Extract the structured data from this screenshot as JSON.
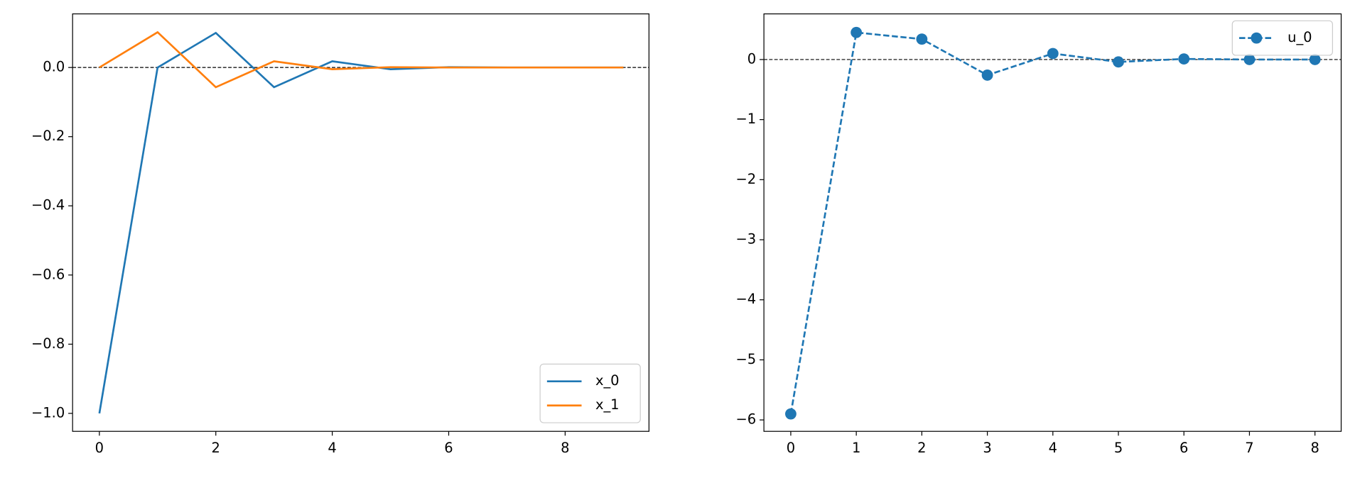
{
  "chart_data": [
    {
      "type": "line",
      "x": [
        0,
        1,
        2,
        3,
        4,
        5,
        6,
        7,
        8,
        9
      ],
      "series": [
        {
          "name": "x_0",
          "color": "#1f77b4",
          "values": [
            -1.0,
            0.0,
            0.1,
            -0.057,
            0.018,
            -0.005,
            0.001,
            0.0,
            0.0,
            0.0
          ]
        },
        {
          "name": "x_1",
          "color": "#ff7f0e",
          "values": [
            0.0,
            0.102,
            -0.057,
            0.018,
            -0.005,
            0.001,
            0.0,
            0.0,
            0.0,
            0.0
          ]
        }
      ],
      "xlim": [
        -0.46,
        9.44
      ],
      "ylim": [
        -1.052,
        0.155
      ],
      "xticks": [
        0,
        2,
        4,
        6,
        8
      ],
      "yticks": [
        {
          "value": 0,
          "label": "0.0"
        },
        {
          "value": -0.2,
          "label": "−0.2"
        },
        {
          "value": -0.4,
          "label": "−0.4"
        },
        {
          "value": -0.6,
          "label": "−0.6"
        },
        {
          "value": -0.8,
          "label": "−0.8"
        },
        {
          "value": -1.0,
          "label": "−1.0"
        }
      ],
      "hline": 0,
      "legend": "lower right"
    },
    {
      "type": "line",
      "x": [
        0,
        1,
        2,
        3,
        4,
        5,
        6,
        7,
        8
      ],
      "series": [
        {
          "name": "u_0",
          "color": "#1f77b4",
          "linestyle": "dashed",
          "marker": "o",
          "values": [
            -5.9,
            0.45,
            0.34,
            -0.26,
            0.1,
            -0.04,
            0.01,
            0.0,
            0.0
          ]
        }
      ],
      "xlim": [
        -0.41,
        8.4
      ],
      "ylim": [
        -6.19,
        0.76
      ],
      "xticks": [
        0,
        1,
        2,
        3,
        4,
        5,
        6,
        7,
        8
      ],
      "yticks": [
        0,
        {
          "value": -1,
          "label": "−1"
        },
        {
          "value": -2,
          "label": "−2"
        },
        {
          "value": -3,
          "label": "−3"
        },
        {
          "value": -4,
          "label": "−4"
        },
        {
          "value": -5,
          "label": "−5"
        },
        {
          "value": -6,
          "label": "−6"
        }
      ],
      "hline": 0,
      "legend": "upper right"
    }
  ]
}
